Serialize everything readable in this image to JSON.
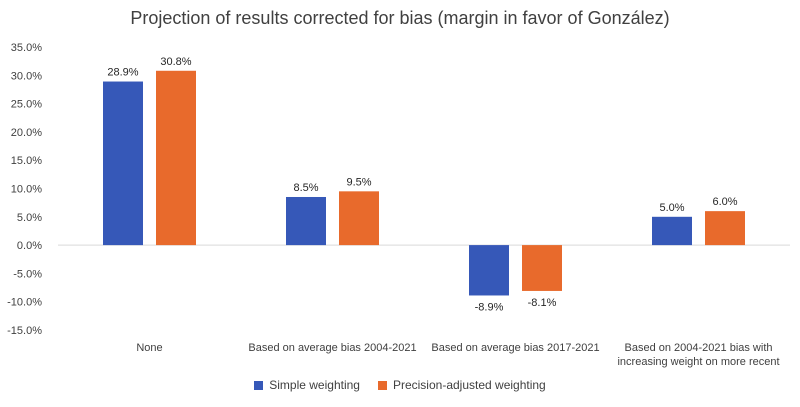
{
  "chart_data": {
    "type": "bar",
    "title": "Projection of results corrected for bias (margin in favor of González)",
    "categories": [
      [
        "None"
      ],
      [
        "Based on average bias 2004-2021"
      ],
      [
        "Based on average bias 2017-2021"
      ],
      [
        "Based on 2004-2021 bias with",
        "increasing weight on more recent"
      ]
    ],
    "series": [
      {
        "name": "Simple weighting",
        "color": "#3658b8",
        "values": [
          28.9,
          8.5,
          -8.9,
          5.0
        ]
      },
      {
        "name": "Precision-adjusted weighting",
        "color": "#e86a2c",
        "values": [
          30.8,
          9.5,
          -8.1,
          6.0
        ]
      }
    ],
    "ylim": [
      -15,
      35
    ],
    "yticks": [
      "35.0%",
      "30.0%",
      "25.0%",
      "20.0%",
      "15.0%",
      "10.0%",
      "5.0%",
      "0.0%",
      "-5.0%",
      "-10.0%",
      "-15.0%"
    ],
    "data_labels": [
      [
        "28.9%",
        "8.5%",
        "-8.9%",
        "5.0%"
      ],
      [
        "30.8%",
        "9.5%",
        "-8.1%",
        "6.0%"
      ]
    ],
    "grid": false,
    "legend_position": "bottom"
  }
}
